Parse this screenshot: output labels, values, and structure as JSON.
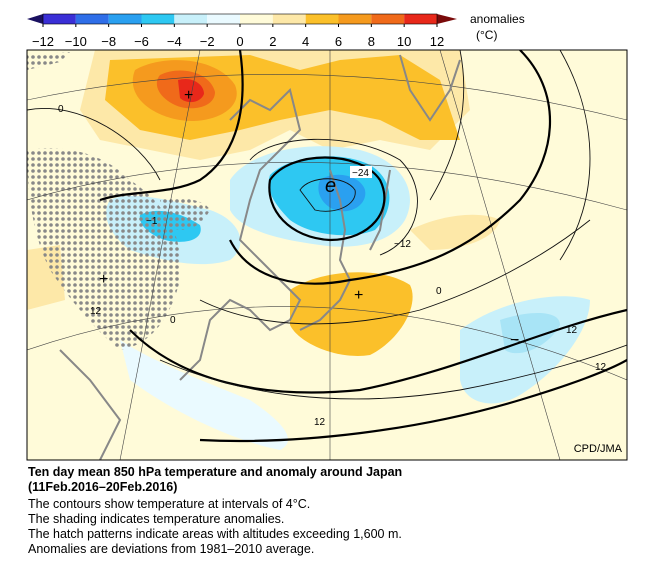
{
  "colorbar": {
    "ticks": [
      {
        "value": -12,
        "label": "−12"
      },
      {
        "value": -10,
        "label": "−10"
      },
      {
        "value": -8,
        "label": "−8"
      },
      {
        "value": -6,
        "label": "−6"
      },
      {
        "value": -4,
        "label": "−4"
      },
      {
        "value": -2,
        "label": "−2"
      },
      0,
      2,
      4,
      6,
      8,
      10,
      12
    ],
    "colors": [
      "#3a2fd6",
      "#2f6ee8",
      "#2aa0f0",
      "#2ec8f2",
      "#c8f0fa",
      "#eafaff",
      "#fffbd9",
      "#fde8a8",
      "#fbc02a",
      "#f59a1e",
      "#f06a1a",
      "#e8281a"
    ],
    "label": "anomalies",
    "unit": "(°C)"
  },
  "map": {
    "contour_labels": [
      "0",
      "−24",
      "−12",
      "0",
      "12",
      "−1",
      "12",
      "0",
      "12",
      "12"
    ],
    "markers": [
      "+",
      "+",
      "+",
      "−"
    ],
    "low_mark": "e",
    "credit": "CPD/JMA"
  },
  "caption": {
    "title": [
      "Ten day mean 850 hPa temperature and anomaly around Japan",
      "(11Feb.2016–20Feb.2016)"
    ],
    "lines": [
      "The contours show temperature at intervals of 4°C.",
      "The shading indicates temperature anomalies.",
      "The hatch patterns indicate areas with altitudes exceeding 1,600 m.",
      "Anomalies are deviations from 1981–2010 average."
    ]
  }
}
